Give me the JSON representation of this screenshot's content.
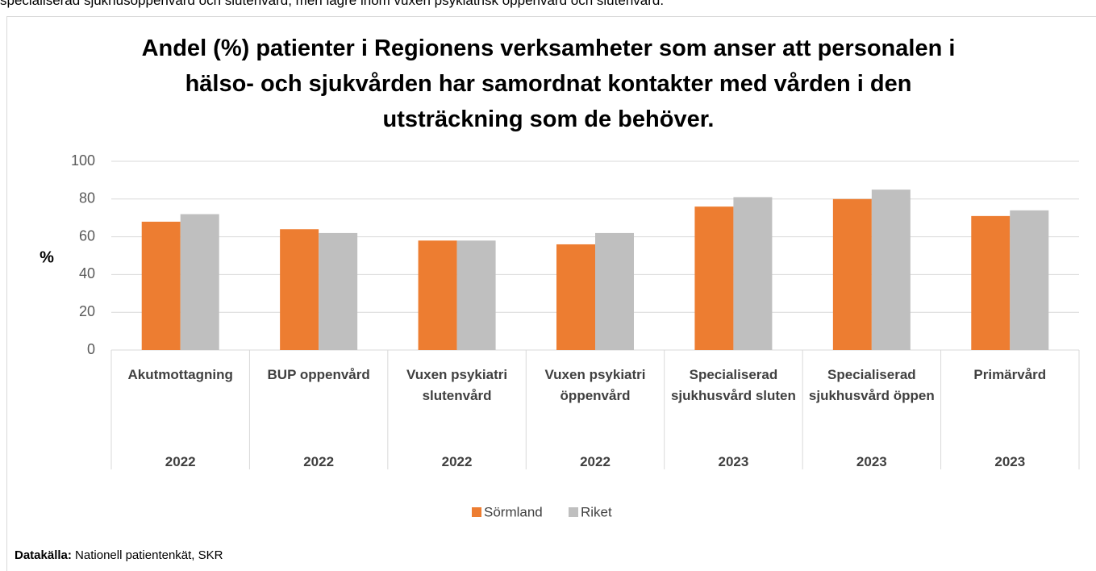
{
  "top_text": "specialiserad sjukhusöppenvård och slutenvård, men lägre inom vuxen psykiatrisk öppenvård och slutenvård.",
  "chart_data": {
    "type": "bar",
    "title": "Andel (%) patienter i Regionens verksamheter som anser att personalen i hälso- och sjukvården har samordnat kontakter med vården i den utsträckning som de behöver.",
    "y_label": "%",
    "categories": [
      "Akutmottagning",
      "BUP oppenvård",
      "Vuxen psykiatri slutenvård",
      "Vuxen psykiatri öppenvård",
      "Specialiserad sjukhusvård sluten",
      "Specialiserad sjukhusvård öppen",
      "Primärvård"
    ],
    "years": [
      "2022",
      "2022",
      "2022",
      "2022",
      "2023",
      "2023",
      "2023"
    ],
    "series": [
      {
        "name": "Sörmland",
        "color": "#ed7d31",
        "values": [
          68,
          64,
          58,
          56,
          76,
          80,
          71
        ]
      },
      {
        "name": "Riket",
        "color": "#bfbfbf",
        "values": [
          72,
          62,
          58,
          62,
          81,
          85,
          74
        ]
      }
    ],
    "ylim": [
      0,
      100
    ],
    "yticks": [
      0,
      20,
      40,
      60,
      80,
      100
    ],
    "grid": true,
    "legend": "bottom",
    "source_label": "Datakälla:",
    "source_text": "Nationell patientenkät, SKR"
  }
}
